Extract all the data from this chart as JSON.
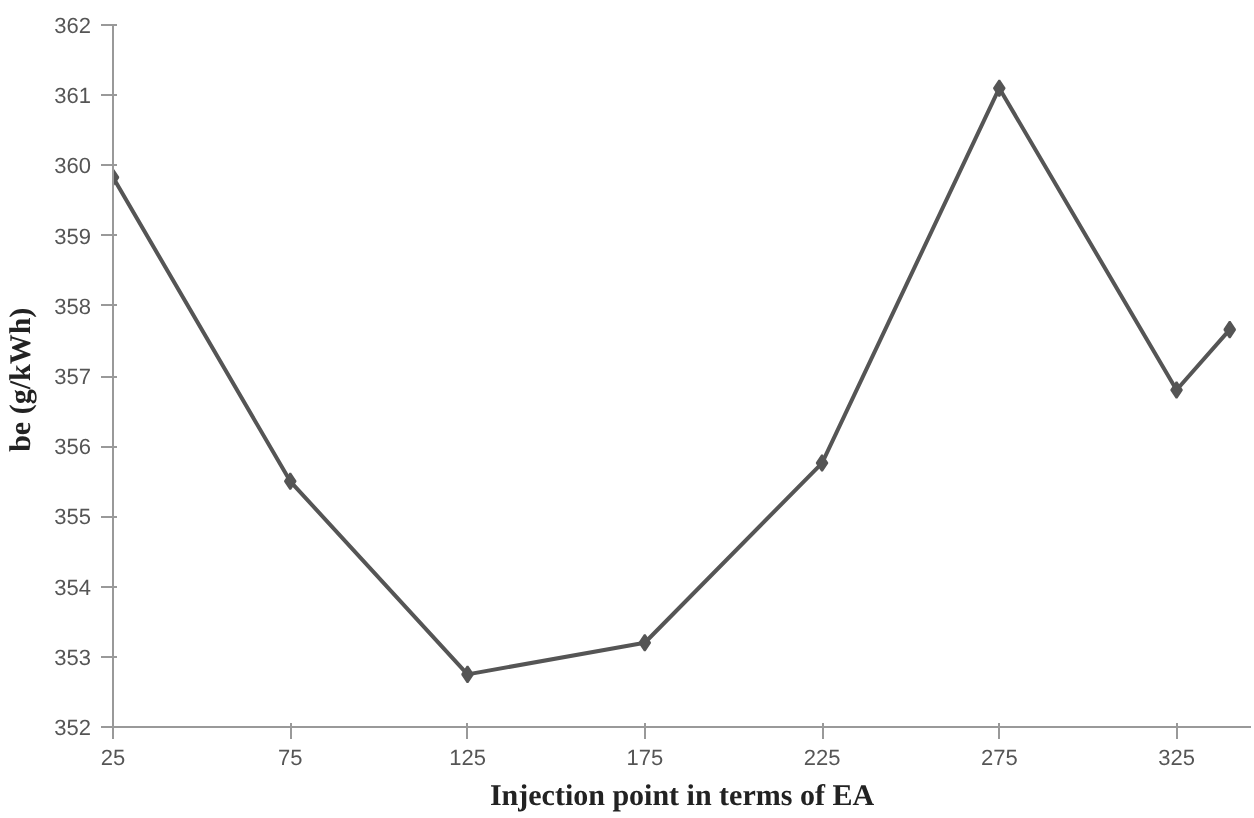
{
  "chart_data": {
    "type": "line",
    "xlabel": "Injection point in terms of EA",
    "ylabel": "be  (g/kWh)",
    "x": [
      25,
      75,
      125,
      175,
      225,
      275,
      325,
      340
    ],
    "series": [
      {
        "color": "#555555",
        "values": [
          359.83,
          355.5,
          352.75,
          353.2,
          355.76,
          361.1,
          356.8,
          357.66
        ]
      }
    ],
    "xlim": [
      25,
      346
    ],
    "ylim": [
      352,
      362
    ],
    "xticks": [
      25,
      75,
      125,
      175,
      225,
      275,
      325
    ],
    "yticks": [
      352,
      353,
      354,
      355,
      356,
      357,
      358,
      359,
      360,
      361,
      362
    ],
    "grid": false,
    "marker": "diamond",
    "line_style": "solid"
  }
}
